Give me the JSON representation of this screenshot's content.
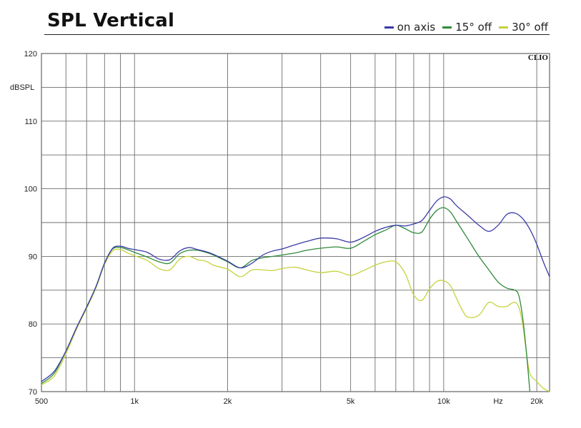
{
  "chart_data": {
    "type": "line",
    "title": "SPL Vertical",
    "ylabel": "dBSPL",
    "xlabel": "Hz",
    "x_scale": "log",
    "xlim": [
      500,
      22000
    ],
    "ylim": [
      70,
      120
    ],
    "y_ticks": [
      70,
      80,
      90,
      100,
      110,
      120
    ],
    "x_tick_labels": [
      {
        "value": 500,
        "label": "500"
      },
      {
        "value": 1000,
        "label": "1k"
      },
      {
        "value": 2000,
        "label": "2k"
      },
      {
        "value": 5000,
        "label": "5k"
      },
      {
        "value": 10000,
        "label": "10k"
      },
      {
        "value": 15000,
        "label": "Hz"
      },
      {
        "value": 20000,
        "label": "20k"
      }
    ],
    "grid": true,
    "legend_position": "top-right",
    "watermark": "CLIO",
    "series": [
      {
        "name": "on axis",
        "color": "#3a3aa8",
        "x": [
          500,
          550,
          600,
          650,
          700,
          750,
          800,
          850,
          900,
          950,
          1000,
          1100,
          1200,
          1300,
          1400,
          1500,
          1600,
          1700,
          1800,
          2000,
          2200,
          2400,
          2600,
          2800,
          3000,
          3300,
          3600,
          4000,
          4500,
          5000,
          5500,
          6000,
          6500,
          7000,
          7500,
          8000,
          8500,
          9000,
          9500,
          10000,
          10500,
          11000,
          12000,
          13000,
          14000,
          15000,
          16000,
          17000,
          18000,
          19000,
          20000,
          21000,
          22000
        ],
        "y": [
          71.5,
          73,
          76,
          79.5,
          82.5,
          85.5,
          89,
          91.2,
          91.5,
          91.2,
          91,
          90.6,
          89.6,
          89.5,
          90.8,
          91.3,
          91,
          90.7,
          90.3,
          89.3,
          88.3,
          89,
          90.2,
          90.8,
          91.1,
          91.7,
          92.2,
          92.7,
          92.6,
          92.1,
          92.8,
          93.7,
          94.3,
          94.6,
          94.5,
          94.8,
          95.3,
          96.8,
          98.2,
          98.8,
          98.5,
          97.5,
          96,
          94.6,
          93.7,
          94.6,
          96.2,
          96.4,
          95.6,
          94,
          91.8,
          89.2,
          87
        ]
      },
      {
        "name": "15° off",
        "color": "#2f8a3a",
        "x": [
          500,
          550,
          600,
          650,
          700,
          750,
          800,
          850,
          900,
          950,
          1000,
          1100,
          1200,
          1300,
          1400,
          1500,
          1600,
          1700,
          1800,
          2000,
          2200,
          2400,
          2600,
          2800,
          3000,
          3300,
          3600,
          4000,
          4500,
          5000,
          5500,
          6000,
          6500,
          7000,
          7500,
          8000,
          8500,
          9000,
          9500,
          10000,
          10500,
          11000,
          12000,
          13000,
          14000,
          15000,
          16000,
          17000,
          17500,
          18000,
          18500,
          19000
        ],
        "y": [
          71.2,
          72.7,
          76,
          79.5,
          82.5,
          85.5,
          89,
          91.1,
          91.3,
          91,
          90.6,
          89.9,
          89.2,
          89,
          90.4,
          90.9,
          90.9,
          90.6,
          90.2,
          89.2,
          88.3,
          89.4,
          89.8,
          90,
          90.2,
          90.5,
          90.9,
          91.2,
          91.4,
          91.2,
          92.2,
          93.2,
          93.9,
          94.6,
          94.1,
          93.5,
          93.6,
          95.5,
          96.8,
          97.2,
          96.6,
          95.2,
          92.5,
          90,
          88,
          86.2,
          85.3,
          85,
          84.2,
          81,
          76,
          70
        ]
      },
      {
        "name": "30° off",
        "color": "#c6d23e",
        "x": [
          500,
          550,
          600,
          650,
          700,
          750,
          800,
          850,
          900,
          950,
          1000,
          1100,
          1200,
          1300,
          1400,
          1500,
          1600,
          1700,
          1800,
          2000,
          2200,
          2400,
          2600,
          2800,
          3000,
          3300,
          3600,
          4000,
          4500,
          5000,
          5500,
          6000,
          6500,
          7000,
          7500,
          8000,
          8500,
          9000,
          9500,
          10000,
          10500,
          11000,
          11500,
          12000,
          13000,
          14000,
          15000,
          16000,
          16500,
          17000,
          17500,
          18000,
          18500,
          19000,
          20000,
          21000,
          22000
        ],
        "y": [
          71,
          72.3,
          75.6,
          79.3,
          82.3,
          85.3,
          88.8,
          90.8,
          91,
          90.5,
          90.1,
          89.4,
          88.2,
          88,
          89.6,
          90,
          89.5,
          89.3,
          88.7,
          88.1,
          87,
          88,
          88,
          87.9,
          88.2,
          88.4,
          88,
          87.6,
          87.8,
          87.2,
          87.9,
          88.7,
          89.2,
          89.2,
          87.5,
          84.3,
          83.5,
          85.2,
          86.3,
          86.4,
          85.7,
          83.8,
          82,
          81,
          81.3,
          83.2,
          82.6,
          82.6,
          83,
          83.2,
          82.5,
          80,
          76,
          72.7,
          71.5,
          70.5,
          70
        ]
      }
    ]
  }
}
